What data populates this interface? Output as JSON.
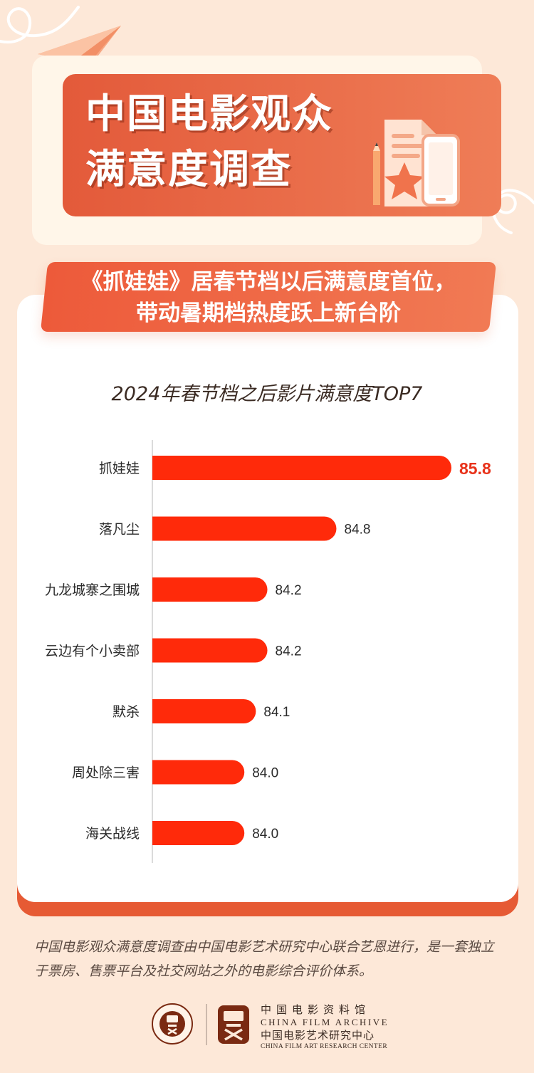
{
  "header": {
    "title_line1": "中国电影观众",
    "title_line2": "满意度调查"
  },
  "subtitle": {
    "line1": "《抓娃娃》居春节档以后满意度首位，",
    "line2": "带动暑期档热度跃上新台阶"
  },
  "chart_data": {
    "type": "bar",
    "orientation": "horizontal",
    "title": "2024年春节档之后影片满意度TOP7",
    "categories": [
      "抓娃娃",
      "落凡尘",
      "九龙城寨之围城",
      "云边有个小卖部",
      "默杀",
      "周处除三害",
      "海关战线"
    ],
    "values": [
      85.8,
      84.8,
      84.2,
      84.2,
      84.1,
      84.0,
      84.0
    ],
    "value_labels": [
      "85.8",
      "84.8",
      "84.2",
      "84.2",
      "84.1",
      "84.0",
      "84.0"
    ],
    "highlight_index": 0,
    "xlabel": "",
    "ylabel": "",
    "grid": false,
    "colors": {
      "bar": "#ff2a0a",
      "highlight_label": "#e8321a",
      "label": "#2b2b2b",
      "axis": "#cfcfcf"
    }
  },
  "footnote": "中国电影观众满意度调查由中国电影艺术研究中心联合艺恩进行，是一套独立于票房、售票平台及社交网站之外的电影综合评价体系。",
  "org": {
    "cn1": "中国电影资料馆",
    "en1": "CHINA FILM ARCHIVE",
    "cn2": "中国电影艺术研究中心",
    "en2": "CHINA FILM ART RESEARCH CENTER",
    "seal_text": "中国电影资料馆 CHINA FILM ARCHIVE"
  },
  "colors": {
    "background": "#fde8d8",
    "accent": "#e65a34",
    "bar": "#ff2a0a"
  }
}
